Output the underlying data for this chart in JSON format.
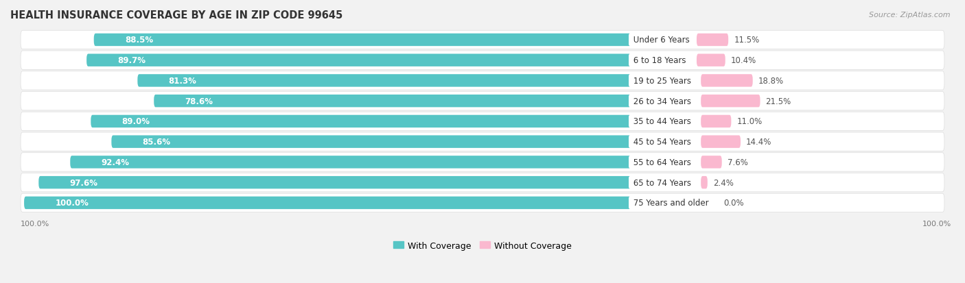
{
  "title": "HEALTH INSURANCE COVERAGE BY AGE IN ZIP CODE 99645",
  "source": "Source: ZipAtlas.com",
  "categories": [
    "Under 6 Years",
    "6 to 18 Years",
    "19 to 25 Years",
    "26 to 34 Years",
    "35 to 44 Years",
    "45 to 54 Years",
    "55 to 64 Years",
    "65 to 74 Years",
    "75 Years and older"
  ],
  "with_coverage": [
    88.5,
    89.7,
    81.3,
    78.6,
    89.0,
    85.6,
    92.4,
    97.6,
    100.0
  ],
  "without_coverage": [
    11.5,
    10.4,
    18.8,
    21.5,
    11.0,
    14.4,
    7.6,
    2.4,
    0.0
  ],
  "color_with": "#56C5C5",
  "color_without": "#F87BA8",
  "color_without_light": "#FAB8CF",
  "bg_color": "#f2f2f2",
  "row_bg": "#ffffff",
  "title_fontsize": 10.5,
  "bar_label_fontsize": 8.5,
  "cat_label_fontsize": 8.5,
  "pct_label_fontsize": 8.5,
  "legend_fontsize": 9,
  "source_fontsize": 8,
  "axis_label_fontsize": 8
}
